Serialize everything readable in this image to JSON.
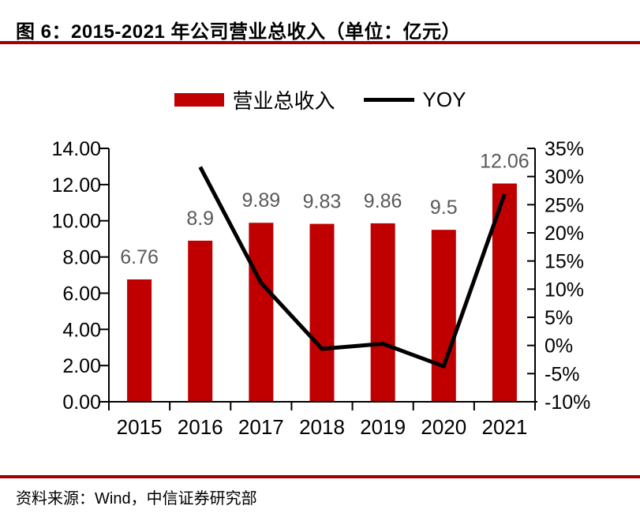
{
  "header": {
    "title": "图 6：2015-2021 年公司营业总收入（单位：亿元）"
  },
  "footer": {
    "source": "资料来源：Wind，中信证券研究部"
  },
  "legend": {
    "items": [
      {
        "label": "营业总收入",
        "marker": "bar-swatch",
        "color": "#C00000"
      },
      {
        "label": "YOY",
        "marker": "line-swatch",
        "color": "#000000"
      }
    ]
  },
  "chart_data": {
    "type": "bar+line combo",
    "title": "2015-2021 年公司营业总收入（单位：亿元）",
    "categories": [
      "2015",
      "2016",
      "2017",
      "2018",
      "2019",
      "2020",
      "2021"
    ],
    "series": [
      {
        "name": "营业总收入",
        "type": "bar",
        "axis": "left",
        "color": "#C00000",
        "values": [
          6.76,
          8.9,
          9.89,
          9.83,
          9.86,
          9.5,
          12.06
        ],
        "data_labels": [
          "6.76",
          "8.9",
          "9.89",
          "9.83",
          "9.86",
          "9.5",
          "12.06"
        ]
      },
      {
        "name": "YOY",
        "type": "line",
        "axis": "right",
        "color": "#000000",
        "categories": [
          "2016",
          "2017",
          "2018",
          "2019",
          "2020",
          "2021"
        ],
        "values_percent": [
          31.7,
          11.1,
          -0.6,
          0.3,
          -3.7,
          26.9
        ]
      }
    ],
    "left_axis": {
      "min": 0,
      "max": 14,
      "step": 2,
      "tick_labels": [
        "0.00",
        "2.00",
        "4.00",
        "6.00",
        "8.00",
        "10.00",
        "12.00",
        "14.00"
      ]
    },
    "right_axis": {
      "min": -10,
      "max": 35,
      "step": 5,
      "tick_labels": [
        "-10%",
        "-5%",
        "0%",
        "5%",
        "10%",
        "15%",
        "20%",
        "25%",
        "30%",
        "35%"
      ]
    },
    "x_axis": {
      "tick_labels": [
        "2015",
        "2016",
        "2017",
        "2018",
        "2019",
        "2020",
        "2021"
      ]
    },
    "grid": false,
    "legend_position": "top-center"
  },
  "style": {
    "bar_color": "#C00000",
    "line_color": "#000000",
    "rule_color": "#A40000",
    "data_label_color": "#595959",
    "axis_color": "#000000",
    "axis_label_color": "#000000"
  }
}
